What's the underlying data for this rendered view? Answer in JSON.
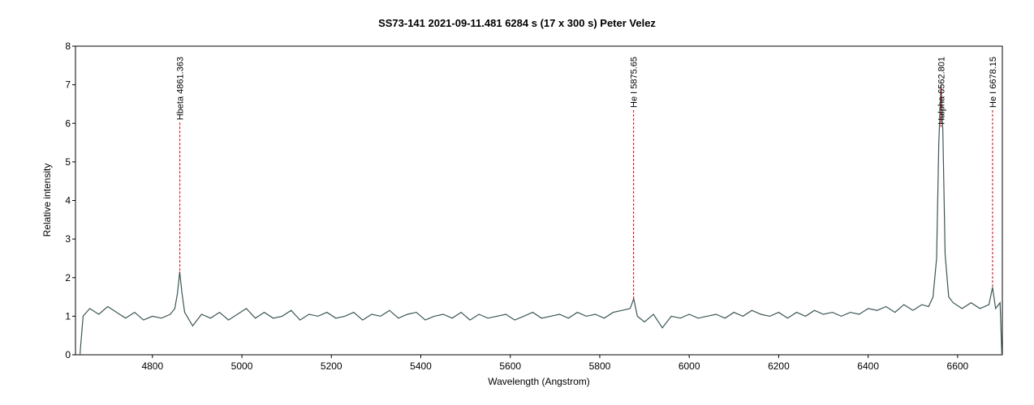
{
  "chart_data": {
    "type": "line",
    "title": "SS73-141   2021-09-11.481   6284 s (17 x 300 s)   Peter Velez",
    "x_label": "Wavelength (Angstrom)",
    "y_label": "Relative intensity",
    "xlim": [
      4628,
      6700
    ],
    "ylim": [
      0,
      8
    ],
    "xticks": [
      4800,
      5000,
      5200,
      5400,
      5600,
      5800,
      6000,
      6200,
      6400,
      6600
    ],
    "yticks": [
      0,
      1,
      2,
      3,
      4,
      5,
      6,
      7,
      8
    ],
    "series": [
      {
        "name": "SS73-141",
        "color": "#3d5555",
        "x": [
          4638,
          4645,
          4660,
          4680,
          4700,
          4720,
          4740,
          4760,
          4780,
          4800,
          4820,
          4840,
          4850,
          4856,
          4861,
          4866,
          4872,
          4890,
          4910,
          4930,
          4950,
          4970,
          4990,
          5010,
          5030,
          5050,
          5070,
          5090,
          5110,
          5130,
          5150,
          5170,
          5190,
          5210,
          5230,
          5250,
          5270,
          5290,
          5310,
          5330,
          5350,
          5370,
          5390,
          5410,
          5430,
          5450,
          5470,
          5490,
          5510,
          5530,
          5550,
          5570,
          5590,
          5610,
          5630,
          5650,
          5670,
          5690,
          5710,
          5730,
          5750,
          5770,
          5790,
          5810,
          5830,
          5850,
          5868,
          5876,
          5884,
          5900,
          5920,
          5940,
          5960,
          5980,
          6000,
          6020,
          6040,
          6060,
          6080,
          6100,
          6120,
          6140,
          6160,
          6180,
          6200,
          6220,
          6240,
          6260,
          6280,
          6300,
          6320,
          6340,
          6360,
          6380,
          6400,
          6420,
          6440,
          6460,
          6480,
          6500,
          6520,
          6535,
          6545,
          6553,
          6558,
          6563,
          6567,
          6572,
          6580,
          6590,
          6610,
          6630,
          6650,
          6670,
          6678,
          6685,
          6695,
          6699
        ],
        "values": [
          0,
          1.0,
          1.2,
          1.05,
          1.25,
          1.1,
          0.95,
          1.1,
          0.9,
          1.0,
          0.95,
          1.05,
          1.2,
          1.6,
          2.15,
          1.6,
          1.1,
          0.75,
          1.05,
          0.95,
          1.1,
          0.9,
          1.05,
          1.2,
          0.95,
          1.1,
          0.95,
          1.0,
          1.15,
          0.9,
          1.05,
          1.0,
          1.1,
          0.95,
          1.0,
          1.1,
          0.9,
          1.05,
          1.0,
          1.15,
          0.95,
          1.05,
          1.1,
          0.9,
          1.0,
          1.05,
          0.95,
          1.1,
          0.9,
          1.05,
          0.95,
          1.0,
          1.05,
          0.9,
          1.0,
          1.1,
          0.95,
          1.0,
          1.05,
          0.95,
          1.1,
          1.0,
          1.05,
          0.95,
          1.1,
          1.15,
          1.2,
          1.45,
          1.0,
          0.85,
          1.05,
          0.7,
          1.0,
          0.95,
          1.05,
          0.95,
          1.0,
          1.05,
          0.95,
          1.1,
          1.0,
          1.15,
          1.05,
          1.0,
          1.1,
          0.95,
          1.1,
          1.0,
          1.15,
          1.05,
          1.1,
          1.0,
          1.1,
          1.05,
          1.2,
          1.15,
          1.25,
          1.1,
          1.3,
          1.15,
          1.3,
          1.25,
          1.5,
          2.5,
          5.5,
          7.0,
          5.8,
          2.6,
          1.5,
          1.35,
          1.2,
          1.35,
          1.2,
          1.3,
          1.75,
          1.2,
          1.35,
          0
        ]
      }
    ],
    "annotations": [
      {
        "label": "Hbeta 4861.363",
        "x": 4861.363
      },
      {
        "label": "He I 5875.65",
        "x": 5875.65
      },
      {
        "label": "Halpha 6562.801",
        "x": 6562.801
      },
      {
        "label": "He I 6678.15",
        "x": 6678.15
      }
    ],
    "annotation_color": "#cc0000"
  }
}
